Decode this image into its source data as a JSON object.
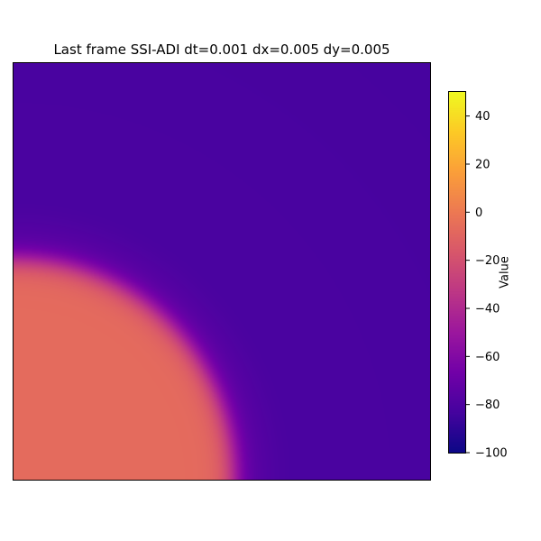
{
  "chart_data": {
    "type": "heatmap",
    "title": "Last frame SSI-ADI dt=0.001 dx=0.005 dy=0.005",
    "colorbar": {
      "label": "Value",
      "range": [
        -100,
        50
      ],
      "ticks": [
        40,
        20,
        0,
        -20,
        -40,
        -60,
        -80,
        -100
      ],
      "colormap": "plasma"
    },
    "axes_ticks_visible": false,
    "field": {
      "description_values": {
        "background": -82,
        "excited_region": -7,
        "excited_region_corner": "bottom-left",
        "excited_region_radius_fraction": 0.53
      }
    },
    "colors": {
      "plasma_stops": [
        "#0d0887",
        "#46039f",
        "#7201a8",
        "#9c179e",
        "#bd3786",
        "#d8576b",
        "#ed7953",
        "#fb9f3a",
        "#fdca26",
        "#f0f921"
      ]
    }
  }
}
